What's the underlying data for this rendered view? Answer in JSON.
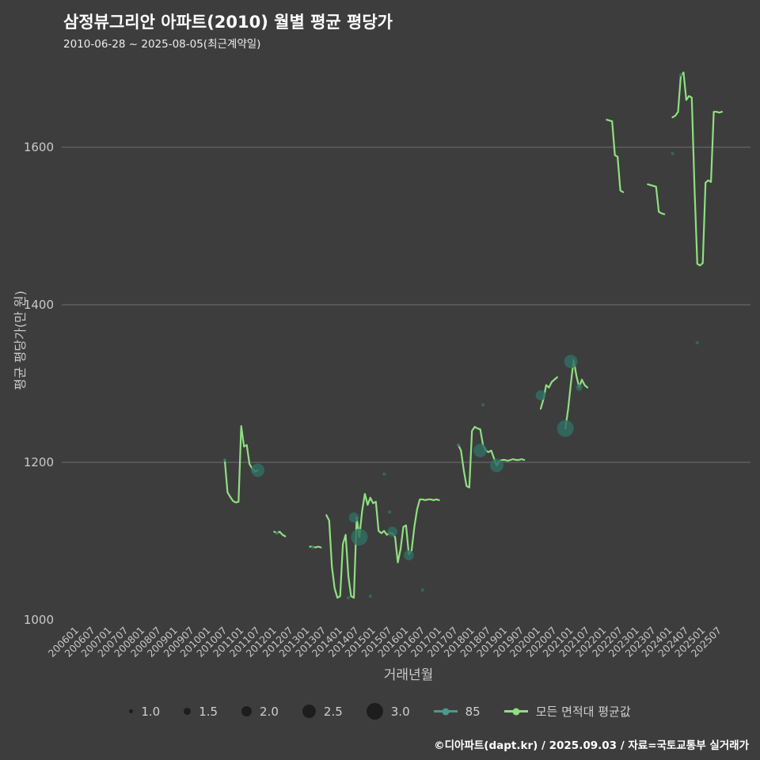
{
  "header": {
    "title": "삼정뷰그리안 아파트(2010) 월별 평균 평당가",
    "subtitle": "2010-06-28 ~ 2025-08-05(최근계약일)"
  },
  "footer": {
    "credit": "©디아파트(dapt.kr) / 2025.09.03 / 자료=국토교통부 실거래가"
  },
  "colors": {
    "background": "#3d3d3d",
    "line_series": "#8ee07f",
    "bubble_series": "#2f6e63",
    "legend_teal": "#4a9a8c",
    "gridline": "#9b9b9b",
    "text": "#c9c9c9"
  },
  "chart_data": {
    "type": "line+bubble",
    "title": "삼정뷰그리안 아파트(2010) 월별 평균 평당가",
    "xlabel": "거래년월",
    "ylabel": "평균 평당가(만 원)",
    "ylim": [
      1000,
      1700
    ],
    "yticks": [
      1000,
      1200,
      1400,
      1600
    ],
    "grid": "horizontal-only",
    "legend_position": "bottom",
    "legend_sizes": [
      "1.0",
      "1.5",
      "2.0",
      "2.5",
      "3.0"
    ],
    "xticks": [
      "200601",
      "200607",
      "200701",
      "200707",
      "200801",
      "200807",
      "200901",
      "200907",
      "201001",
      "201007",
      "201101",
      "201107",
      "201201",
      "201207",
      "201301",
      "201307",
      "201401",
      "201407",
      "201501",
      "201507",
      "201601",
      "201607",
      "201701",
      "201707",
      "201801",
      "201807",
      "201901",
      "201907",
      "202001",
      "202007",
      "202101",
      "202107",
      "202201",
      "202207",
      "202301",
      "202307",
      "202401",
      "202407",
      "202501",
      "202507"
    ],
    "series": [
      {
        "name": "85",
        "type": "bubble",
        "color": "#2f6e63",
        "points": [
          {
            "x": "201006",
            "y": 1203,
            "size": 1.0
          },
          {
            "x": "201106",
            "y": 1190,
            "size": 2.5
          },
          {
            "x": "201201",
            "y": 1110,
            "size": 1.0
          },
          {
            "x": "201302",
            "y": 1092,
            "size": 1.0
          },
          {
            "x": "201403",
            "y": 1028,
            "size": 1.0
          },
          {
            "x": "201405",
            "y": 1130,
            "size": 2.0
          },
          {
            "x": "201407",
            "y": 1105,
            "size": 3.0
          },
          {
            "x": "201411",
            "y": 1030,
            "size": 1.0
          },
          {
            "x": "201504",
            "y": 1185,
            "size": 1.0
          },
          {
            "x": "201506",
            "y": 1137,
            "size": 1.0
          },
          {
            "x": "201507",
            "y": 1112,
            "size": 2.0
          },
          {
            "x": "201601",
            "y": 1082,
            "size": 2.0
          },
          {
            "x": "201606",
            "y": 1038,
            "size": 1.0
          },
          {
            "x": "201707",
            "y": 1222,
            "size": 1.0
          },
          {
            "x": "201803",
            "y": 1215,
            "size": 2.5
          },
          {
            "x": "201804",
            "y": 1273,
            "size": 1.0
          },
          {
            "x": "201809",
            "y": 1196,
            "size": 2.5
          },
          {
            "x": "202001",
            "y": 1285,
            "size": 2.0
          },
          {
            "x": "202010",
            "y": 1243,
            "size": 3.0
          },
          {
            "x": "202012",
            "y": 1328,
            "size": 2.5
          },
          {
            "x": "202103",
            "y": 1295,
            "size": 1.5
          },
          {
            "x": "202401",
            "y": 1592,
            "size": 1.0
          },
          {
            "x": "202404",
            "y": 1692,
            "size": 1.0
          },
          {
            "x": "202410",
            "y": 1352,
            "size": 1.0
          }
        ]
      },
      {
        "name": "모든 면적대 평균값",
        "type": "line",
        "color": "#8ee07f",
        "segments": [
          [
            [
              "201006",
              1203
            ],
            [
              "201007",
              1162
            ],
            [
              "201008",
              1156
            ],
            [
              "201009",
              1151
            ],
            [
              "201010",
              1149
            ],
            [
              "201011",
              1150
            ],
            [
              "201012",
              1246
            ],
            [
              "201101",
              1220
            ],
            [
              "201102",
              1222
            ],
            [
              "201103",
              1198
            ],
            [
              "201104",
              1192
            ],
            [
              "201105",
              1188
            ],
            [
              "201106",
              1190
            ]
          ],
          [
            [
              "201112",
              1112
            ],
            [
              "201201",
              1110
            ],
            [
              "201202",
              1112
            ],
            [
              "201203",
              1108
            ],
            [
              "201204",
              1106
            ]
          ],
          [
            [
              "201301",
              1093
            ],
            [
              "201302",
              1093
            ],
            [
              "201303",
              1092
            ],
            [
              "201304",
              1093
            ],
            [
              "201305",
              1092
            ]
          ],
          [
            [
              "201307",
              1133
            ],
            [
              "201308",
              1126
            ],
            [
              "201309",
              1068
            ],
            [
              "201310",
              1040
            ],
            [
              "201311",
              1028
            ],
            [
              "201312",
              1030
            ],
            [
              "201401",
              1096
            ],
            [
              "201402",
              1108
            ],
            [
              "201403",
              1055
            ],
            [
              "201404",
              1030
            ],
            [
              "201405",
              1028
            ],
            [
              "201406",
              1130
            ],
            [
              "201407",
              1105
            ],
            [
              "201408",
              1138
            ],
            [
              "201409",
              1160
            ],
            [
              "201410",
              1146
            ],
            [
              "201411",
              1155
            ],
            [
              "201412",
              1148
            ],
            [
              "201501",
              1150
            ],
            [
              "201502",
              1113
            ],
            [
              "201503",
              1110
            ],
            [
              "201504",
              1113
            ],
            [
              "201505",
              1108
            ],
            [
              "201506",
              1110
            ],
            [
              "201507",
              1110
            ],
            [
              "201508",
              1105
            ],
            [
              "201509",
              1073
            ],
            [
              "201510",
              1090
            ],
            [
              "201511",
              1118
            ],
            [
              "201512",
              1120
            ],
            [
              "201601",
              1083
            ],
            [
              "201602",
              1088
            ],
            [
              "201603",
              1118
            ],
            [
              "201604",
              1140
            ],
            [
              "201605",
              1153
            ],
            [
              "201606",
              1153
            ],
            [
              "201607",
              1152
            ],
            [
              "201608",
              1153
            ],
            [
              "201609",
              1153
            ],
            [
              "201610",
              1152
            ],
            [
              "201611",
              1153
            ],
            [
              "201612",
              1152
            ]
          ],
          [
            [
              "201707",
              1222
            ],
            [
              "201708",
              1215
            ],
            [
              "201709",
              1190
            ],
            [
              "201710",
              1170
            ],
            [
              "201711",
              1168
            ],
            [
              "201712",
              1240
            ],
            [
              "201801",
              1245
            ],
            [
              "201802",
              1243
            ],
            [
              "201803",
              1242
            ],
            [
              "201804",
              1222
            ],
            [
              "201805",
              1215
            ],
            [
              "201806",
              1213
            ],
            [
              "201807",
              1215
            ],
            [
              "201808",
              1205
            ],
            [
              "201809",
              1196
            ],
            [
              "201810",
              1202
            ],
            [
              "201811",
              1203
            ],
            [
              "201812",
              1203
            ],
            [
              "201901",
              1202
            ],
            [
              "201902",
              1203
            ],
            [
              "201903",
              1204
            ],
            [
              "201904",
              1203
            ],
            [
              "201905",
              1203
            ],
            [
              "201906",
              1204
            ],
            [
              "201907",
              1203
            ]
          ],
          [
            [
              "202001",
              1268
            ],
            [
              "202002",
              1280
            ],
            [
              "202003",
              1298
            ],
            [
              "202004",
              1295
            ],
            [
              "202005",
              1302
            ],
            [
              "202006",
              1305
            ],
            [
              "202007",
              1308
            ]
          ],
          [
            [
              "202010",
              1243
            ],
            [
              "202011",
              1268
            ],
            [
              "202012",
              1300
            ],
            [
              "202101",
              1330
            ],
            [
              "202102",
              1310
            ],
            [
              "202103",
              1295
            ],
            [
              "202104",
              1305
            ],
            [
              "202105",
              1298
            ],
            [
              "202106",
              1295
            ]
          ],
          [
            [
              "202201",
              1635
            ],
            [
              "202202",
              1634
            ],
            [
              "202203",
              1633
            ],
            [
              "202204",
              1590
            ],
            [
              "202205",
              1588
            ],
            [
              "202206",
              1545
            ],
            [
              "202207",
              1543
            ]
          ],
          [
            [
              "202304",
              1553
            ],
            [
              "202305",
              1552
            ],
            [
              "202306",
              1551
            ],
            [
              "202307",
              1550
            ],
            [
              "202308",
              1518
            ],
            [
              "202309",
              1516
            ],
            [
              "202310",
              1515
            ]
          ],
          [
            [
              "202401",
              1638
            ],
            [
              "202402",
              1640
            ],
            [
              "202403",
              1645
            ],
            [
              "202404",
              1690
            ],
            [
              "202405",
              1695
            ],
            [
              "202406",
              1660
            ],
            [
              "202407",
              1665
            ],
            [
              "202408",
              1663
            ],
            [
              "202409",
              1548
            ],
            [
              "202410",
              1452
            ],
            [
              "202411",
              1450
            ],
            [
              "202412",
              1453
            ],
            [
              "202501",
              1555
            ],
            [
              "202502",
              1558
            ],
            [
              "202503",
              1556
            ],
            [
              "202504",
              1645
            ],
            [
              "202505",
              1645
            ],
            [
              "202506",
              1644
            ],
            [
              "202507",
              1645
            ]
          ]
        ]
      }
    ]
  }
}
